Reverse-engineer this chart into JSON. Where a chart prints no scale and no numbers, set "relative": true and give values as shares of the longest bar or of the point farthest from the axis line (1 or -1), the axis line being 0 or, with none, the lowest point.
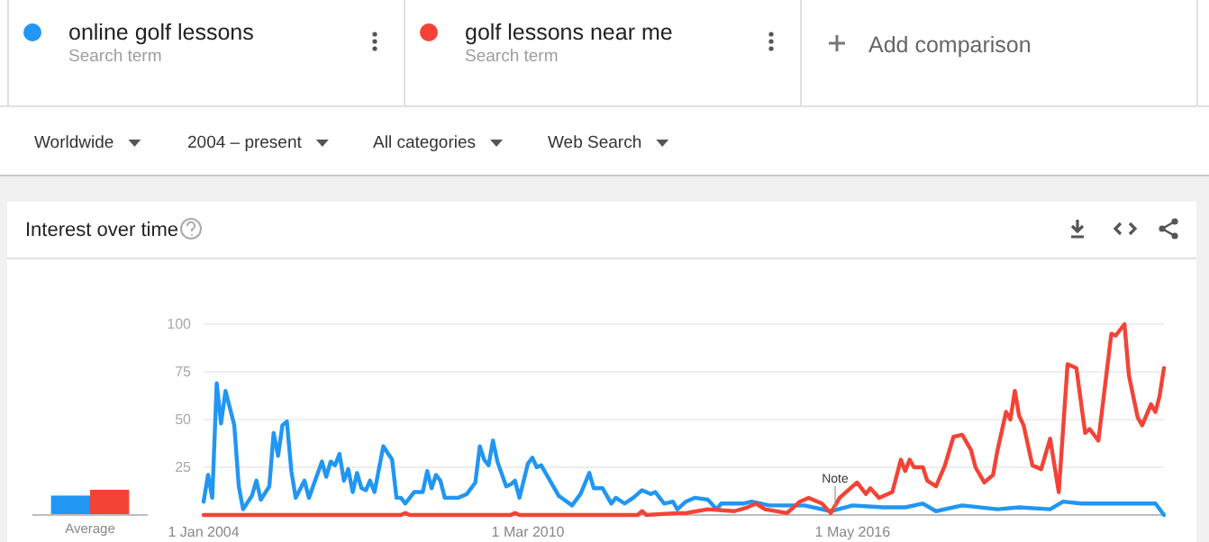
{
  "chart_data": [
    {
      "type": "bar",
      "xlabel": "Average",
      "categories": [
        null
      ],
      "relative": true,
      "series": [
        {
          "color": "#2196f3",
          "values": [
            0.77
          ]
        },
        {
          "color": "#f44336",
          "values": [
            1
          ]
        }
      ]
    },
    {
      "type": "line",
      "title": "Interest over time",
      "legend": "top",
      "grid": "y",
      "marker": "none",
      "line_style": "solid",
      "xlim": [
        "2004-01",
        "2022-04"
      ],
      "ylim": [
        0,
        100
      ],
      "xticks": [
        {
          "value": "2004-01",
          "label": "1 Jan 2004"
        },
        {
          "value": "2010-03",
          "label": "1 Mar 2010"
        },
        {
          "value": "2016-05",
          "label": "1 May 2016"
        }
      ],
      "yticks": [
        25,
        50,
        75,
        100
      ],
      "annotations": [
        "Search term",
        "Search term",
        "Add comparison",
        "Worldwide",
        "2004 – present",
        "All categories",
        "Web Search",
        {
          "text": "Note",
          "x": "2016-01",
          "y": 3
        }
      ],
      "series": [
        {
          "name": "online golf lessons",
          "color": "#2196f3",
          "x": [
            "2004-01",
            "2004-02",
            "2004-03",
            "2004-04",
            "2004-05",
            "2004-06",
            "2004-08",
            "2004-09",
            "2004-10",
            "2004-12",
            "2005-01",
            "2005-02",
            "2005-04",
            "2005-05",
            "2005-06",
            "2005-07",
            "2005-08",
            "2005-09",
            "2005-10",
            "2005-12",
            "2006-01",
            "2006-04",
            "2006-05",
            "2006-06",
            "2006-07",
            "2006-08",
            "2006-09",
            "2006-10",
            "2006-11",
            "2006-12",
            "2007-01",
            "2007-02",
            "2007-03",
            "2007-04",
            "2007-06",
            "2007-08",
            "2007-09",
            "2007-10",
            "2007-11",
            "2008-01",
            "2008-03",
            "2008-04",
            "2008-05",
            "2008-06",
            "2008-07",
            "2008-08",
            "2008-11",
            "2009-01",
            "2009-03",
            "2009-04",
            "2009-05",
            "2009-06",
            "2009-07",
            "2009-08",
            "2009-10",
            "2009-11",
            "2009-12",
            "2010-01",
            "2010-03",
            "2010-04",
            "2010-05",
            "2010-06",
            "2010-09",
            "2010-10",
            "2011-01",
            "2011-03",
            "2011-05",
            "2011-06",
            "2011-08",
            "2011-10",
            "2011-11",
            "2012-01",
            "2012-03",
            "2012-05",
            "2012-07",
            "2012-08",
            "2012-10",
            "2012-12",
            "2013-01",
            "2013-03",
            "2013-05",
            "2013-08",
            "2013-10",
            "2013-11",
            "2014-04",
            "2014-06",
            "2014-10",
            "2015-06",
            "2015-12",
            "2016-05",
            "2016-12",
            "2017-05",
            "2017-09",
            "2017-12",
            "2018-06",
            "2019-02",
            "2019-07",
            "2020-02",
            "2020-05",
            "2020-09",
            "2021-03",
            "2021-08",
            "2022-02",
            "2022-04"
          ],
          "values": [
            7,
            21,
            9,
            69,
            48,
            65,
            47,
            15,
            3,
            10,
            18,
            8,
            15,
            43,
            31,
            47,
            49,
            23,
            9,
            18,
            9,
            28,
            20,
            28,
            26,
            32,
            18,
            24,
            12,
            22,
            14,
            13,
            18,
            12,
            36,
            29,
            9,
            9,
            6,
            12,
            12,
            23,
            14,
            21,
            18,
            9,
            9,
            11,
            17,
            36,
            29,
            26,
            39,
            28,
            15,
            16,
            18,
            9,
            27,
            30,
            25,
            26,
            14,
            10,
            5,
            11,
            22,
            14,
            14,
            6,
            9,
            6,
            9,
            13,
            11,
            12,
            6,
            7,
            3,
            7,
            9,
            8,
            3,
            6,
            6,
            7,
            5,
            5,
            2,
            5,
            4,
            4,
            6,
            2,
            5,
            3,
            4,
            3,
            7,
            6,
            6,
            6,
            6,
            0
          ]
        },
        {
          "name": "golf lessons near me",
          "color": "#f44336",
          "x": [
            "2004-01",
            "2007-10",
            "2007-11",
            "2007-12",
            "2009-11",
            "2009-12",
            "2010-01",
            "2012-04",
            "2012-05",
            "2012-06",
            "2013-01",
            "2013-03",
            "2013-08",
            "2014-02",
            "2014-05",
            "2014-07",
            "2014-09",
            "2015-02",
            "2015-05",
            "2015-07",
            "2015-10",
            "2015-12",
            "2016-02",
            "2016-06",
            "2016-08",
            "2016-09",
            "2016-11",
            "2017-02",
            "2017-04",
            "2017-05",
            "2017-06",
            "2017-07",
            "2017-09",
            "2017-10",
            "2017-12",
            "2018-02",
            "2018-04",
            "2018-06",
            "2018-08",
            "2018-09",
            "2018-11",
            "2019-01",
            "2019-02",
            "2019-04",
            "2019-05",
            "2019-06",
            "2019-07",
            "2019-08",
            "2019-10",
            "2019-12",
            "2020-02",
            "2020-04",
            "2020-06",
            "2020-08",
            "2020-10",
            "2020-11",
            "2021-01",
            "2021-04",
            "2021-05",
            "2021-07",
            "2021-08",
            "2021-10",
            "2021-11",
            "2022-01",
            "2022-02",
            "2022-03",
            "2022-04"
          ],
          "values": [
            0,
            0,
            1,
            0,
            0,
            1,
            0,
            0,
            2,
            0,
            1,
            1,
            3,
            2,
            4,
            6,
            3,
            1,
            7,
            9,
            6,
            1,
            9,
            17,
            11,
            14,
            9,
            12,
            29,
            23,
            29,
            25,
            25,
            18,
            15,
            26,
            41,
            42,
            34,
            25,
            17,
            21,
            34,
            54,
            50,
            65,
            52,
            47,
            26,
            24,
            40,
            12,
            79,
            77,
            43,
            45,
            39,
            95,
            94,
            100,
            73,
            51,
            47,
            58,
            54,
            62,
            77
          ]
        }
      ]
    }
  ]
}
